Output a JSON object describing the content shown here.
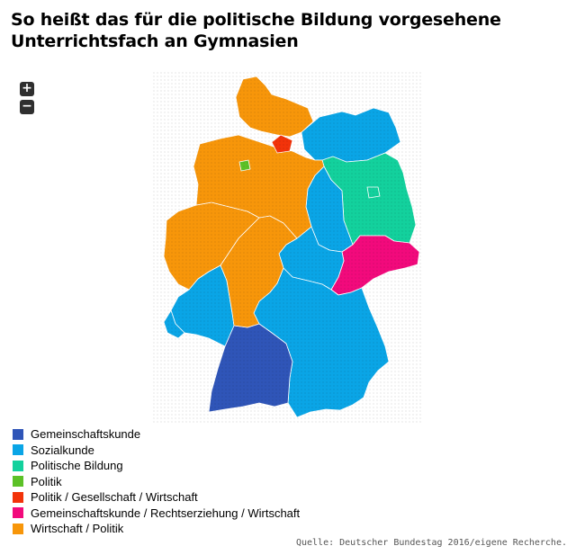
{
  "title": "So heißt das für die politische Bildung vorgesehene Unterrichtsfach an Gymnasien",
  "zoom": {
    "in_label": "+",
    "out_label": "−"
  },
  "colors": {
    "Gemeinschaftskunde": "#2f55b8",
    "Sozialkunde": "#0aa5e6",
    "Politische Bildung": "#13d19d",
    "Politik": "#5cc127",
    "Politik / Gesellschaft / Wirtschaft": "#f2330a",
    "Gemeinschaftskunde / Rechtserziehung / Wirtschaft": "#f20a7c",
    "Wirtschaft / Politik": "#f7960a"
  },
  "legend": [
    "Gemeinschaftskunde",
    "Sozialkunde",
    "Politische Bildung",
    "Politik",
    "Politik / Gesellschaft / Wirtschaft",
    "Gemeinschaftskunde / Rechtserziehung / Wirtschaft",
    "Wirtschaft / Politik"
  ],
  "states": [
    {
      "id": "schleswig-holstein",
      "subject": "Wirtschaft / Politik"
    },
    {
      "id": "hamburg",
      "subject": "Politik / Gesellschaft / Wirtschaft"
    },
    {
      "id": "niedersachsen",
      "subject": "Wirtschaft / Politik"
    },
    {
      "id": "bremen",
      "subject": "Politik"
    },
    {
      "id": "nordrhein-westfalen",
      "subject": "Wirtschaft / Politik"
    },
    {
      "id": "hessen",
      "subject": "Wirtschaft / Politik"
    },
    {
      "id": "rheinland-pfalz",
      "subject": "Sozialkunde"
    },
    {
      "id": "saarland",
      "subject": "Sozialkunde"
    },
    {
      "id": "baden-wuerttemberg",
      "subject": "Gemeinschaftskunde"
    },
    {
      "id": "bayern",
      "subject": "Sozialkunde"
    },
    {
      "id": "thueringen",
      "subject": "Sozialkunde"
    },
    {
      "id": "sachsen",
      "subject": "Gemeinschaftskunde / Rechtserziehung / Wirtschaft"
    },
    {
      "id": "sachsen-anhalt",
      "subject": "Sozialkunde"
    },
    {
      "id": "brandenburg",
      "subject": "Politische Bildung"
    },
    {
      "id": "berlin",
      "subject": "Politische Bildung"
    },
    {
      "id": "mecklenburg-vorpommern",
      "subject": "Sozialkunde"
    }
  ],
  "source": "Quelle: Deutscher Bundestag 2016/eigene Recherche."
}
